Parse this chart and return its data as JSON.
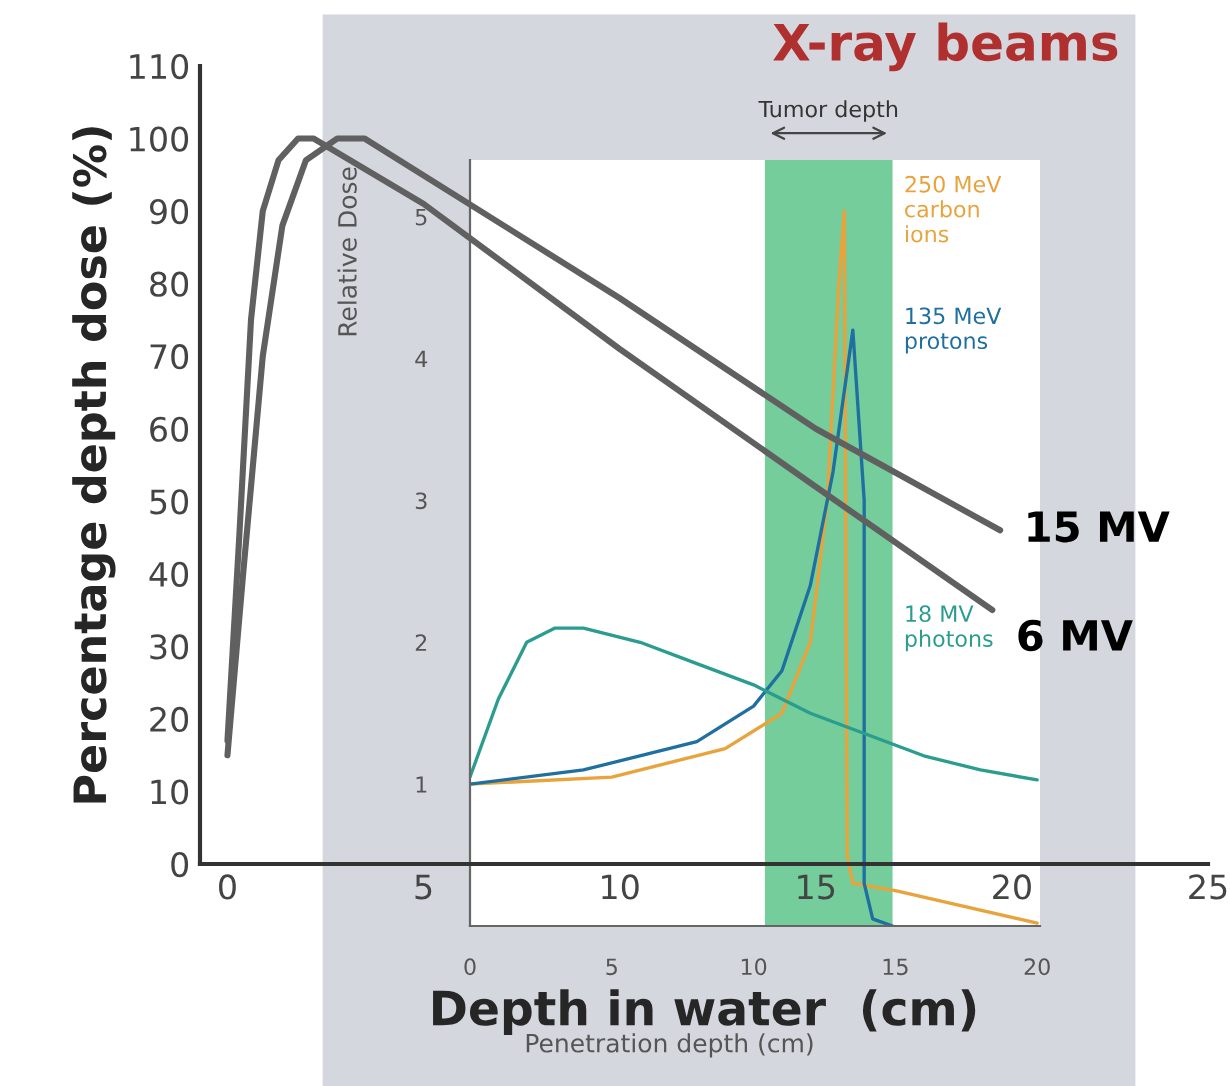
{
  "chart_data": [
    {
      "type": "line",
      "title": "X-ray beams",
      "xlabel": "Depth in water  (cm)",
      "ylabel": "Percentage depth dose (%)",
      "xlim": [
        -0.7,
        25
      ],
      "xticks": [
        0,
        5,
        10,
        15,
        20,
        25
      ],
      "ylim": [
        0,
        110
      ],
      "yticks": [
        0,
        10,
        20,
        30,
        40,
        50,
        60,
        70,
        80,
        90,
        100,
        110
      ],
      "grid": false,
      "series": [
        {
          "name": "15 MV",
          "color": "#606060",
          "x": [
            0,
            0.4,
            0.9,
            1.4,
            2,
            2.8,
            3.5,
            10,
            15,
            19.7
          ],
          "values": [
            15,
            40,
            70,
            88,
            97,
            100,
            100,
            78,
            60,
            46
          ]
        },
        {
          "name": "6 MV",
          "color": "#606060",
          "x": [
            0,
            0.3,
            0.6,
            0.9,
            1.3,
            1.8,
            2.2,
            5,
            10,
            15,
            19.5
          ],
          "values": [
            17,
            45,
            75,
            90,
            97,
            100,
            100,
            91,
            71,
            52,
            35
          ]
        }
      ]
    },
    {
      "type": "line",
      "xlabel": "Penetration depth (cm)",
      "ylabel": "Relative Dose",
      "xlim": [
        0,
        20.1
      ],
      "xticks": [
        0,
        5,
        10,
        15,
        20
      ],
      "ylim": [
        0,
        5.4
      ],
      "yticks": [
        1,
        2,
        3,
        4,
        5
      ],
      "grid": false,
      "bands": [
        {
          "axis": "x",
          "from": 10.4,
          "to": 14.9,
          "label": "Tumor depth",
          "color": "#5cc48a"
        }
      ],
      "series": [
        {
          "name": "250 MeV\ncarbon\nions",
          "color": "#e8a33c",
          "x": [
            0,
            5,
            9,
            11,
            12,
            12.6,
            13.0,
            13.2,
            13.3,
            13.5,
            15,
            20
          ],
          "values": [
            1.0,
            1.05,
            1.25,
            1.5,
            2.0,
            3.0,
            4.5,
            5.04,
            0.5,
            0.3,
            0.25,
            0.02
          ]
        },
        {
          "name": "135 MeV\nprotons",
          "color": "#1f6fa0",
          "x": [
            0,
            4,
            8,
            10,
            11,
            12,
            12.8,
            13.5,
            13.9,
            13.9,
            14.2,
            14.9
          ],
          "values": [
            1.0,
            1.1,
            1.3,
            1.55,
            1.8,
            2.4,
            3.2,
            4.2,
            3.0,
            0.3,
            0.05,
            0
          ]
        },
        {
          "name": "18 MV\nphotons",
          "color": "#2a9d8f",
          "x": [
            0,
            1,
            2,
            3,
            4,
            6,
            8,
            10,
            12,
            14,
            16,
            18,
            20
          ],
          "values": [
            1.05,
            1.6,
            2.0,
            2.1,
            2.1,
            2.0,
            1.85,
            1.7,
            1.5,
            1.35,
            1.2,
            1.1,
            1.03
          ]
        }
      ]
    }
  ]
}
